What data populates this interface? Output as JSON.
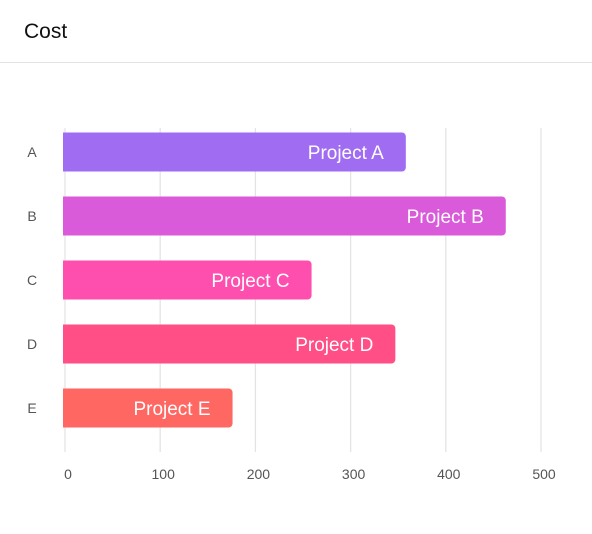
{
  "header": {
    "title": "Cost"
  },
  "chart_data": {
    "type": "bar",
    "orientation": "horizontal",
    "title": "Cost",
    "categories": [
      "A",
      "B",
      "C",
      "D",
      "E"
    ],
    "values": [
      358,
      463,
      259,
      347,
      176
    ],
    "bar_labels": [
      "Project A",
      "Project B",
      "Project C",
      "Project D",
      "Project E"
    ],
    "colors": [
      "#a06cf2",
      "#d95bd9",
      "#ff4fae",
      "#ff4f86",
      "#ff6762"
    ],
    "xlim": [
      0,
      500
    ],
    "xticks": [
      0,
      100,
      200,
      300,
      400,
      500
    ],
    "grid": true,
    "legend": "none",
    "xlabel": "",
    "ylabel": ""
  }
}
